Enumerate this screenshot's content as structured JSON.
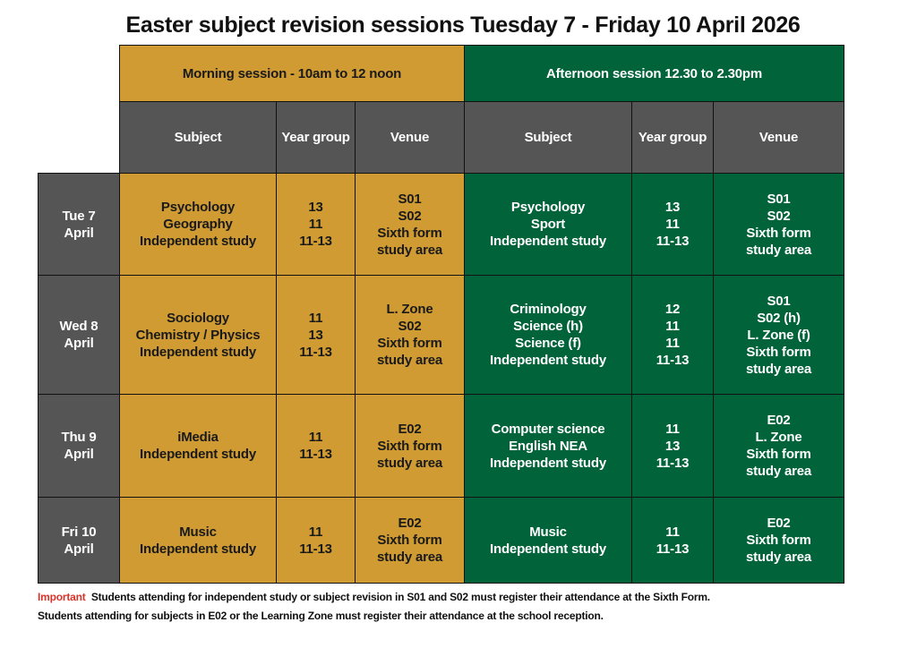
{
  "title": "Easter subject revision sessions Tuesday 7 - Friday 10 April 2026",
  "colors": {
    "morning": "#CF9B32",
    "afternoon": "#00633A",
    "header": "#555555",
    "important": "#d9342b"
  },
  "morning": {
    "label": "Morning session - 10am to 12 noon",
    "headers": [
      "Subject",
      "Year group",
      "Venue"
    ]
  },
  "afternoon": {
    "label": "Afternoon session 12.30 to 2.30pm",
    "headers": [
      "Subject",
      "Year group",
      "Venue"
    ]
  },
  "days": [
    {
      "day": [
        "Tue 7",
        "April"
      ],
      "am": {
        "subject": [
          "Psychology",
          "Geography",
          "Independent study"
        ],
        "year": [
          "13",
          "11",
          "11-13"
        ],
        "venue": [
          "S01",
          "S02",
          "Sixth form",
          "study area"
        ]
      },
      "pm": {
        "subject": [
          "Psychology",
          "Sport",
          "Independent study"
        ],
        "year": [
          "13",
          "11",
          "11-13"
        ],
        "venue": [
          "S01",
          "S02",
          "Sixth form",
          "study area"
        ]
      }
    },
    {
      "day": [
        "Wed 8",
        "April"
      ],
      "am": {
        "subject": [
          "Sociology",
          "Chemistry / Physics",
          "Independent study"
        ],
        "year": [
          "11",
          "13",
          "11-13"
        ],
        "venue": [
          "L. Zone",
          "S02",
          "Sixth form",
          "study area"
        ]
      },
      "pm": {
        "subject": [
          "Criminology",
          "Science (h)",
          "Science (f)",
          "Independent study"
        ],
        "year": [
          "12",
          "11",
          "11",
          "11-13"
        ],
        "venue": [
          "S01",
          "S02 (h)",
          "L. Zone (f)",
          "Sixth form",
          "study area"
        ]
      }
    },
    {
      "day": [
        "Thu 9",
        "April"
      ],
      "am": {
        "subject": [
          "iMedia",
          "Independent study"
        ],
        "year": [
          "11",
          "11-13"
        ],
        "venue": [
          "E02",
          "Sixth form",
          "study area"
        ]
      },
      "pm": {
        "subject": [
          "Computer science",
          "English NEA",
          "Independent study"
        ],
        "year": [
          "11",
          "13",
          "11-13"
        ],
        "venue": [
          "E02",
          "L. Zone",
          "Sixth form",
          "study area"
        ]
      }
    },
    {
      "day": [
        "Fri 10",
        "April"
      ],
      "am": {
        "subject": [
          "Music",
          "Independent study"
        ],
        "year": [
          "11",
          "11-13"
        ],
        "venue": [
          "E02",
          "Sixth form",
          "study area"
        ]
      },
      "pm": {
        "subject": [
          "Music",
          "Independent study"
        ],
        "year": [
          "11",
          "11-13"
        ],
        "venue": [
          "E02",
          "Sixth form",
          "study area"
        ]
      }
    }
  ],
  "note": {
    "important": "Important",
    "line1": "Students attending for independent study or subject revision in S01 and S02 must register their attendance at the Sixth Form.",
    "line2": "Students attending for subjects in E02 or the Learning Zone must register their attendance at the school reception."
  }
}
